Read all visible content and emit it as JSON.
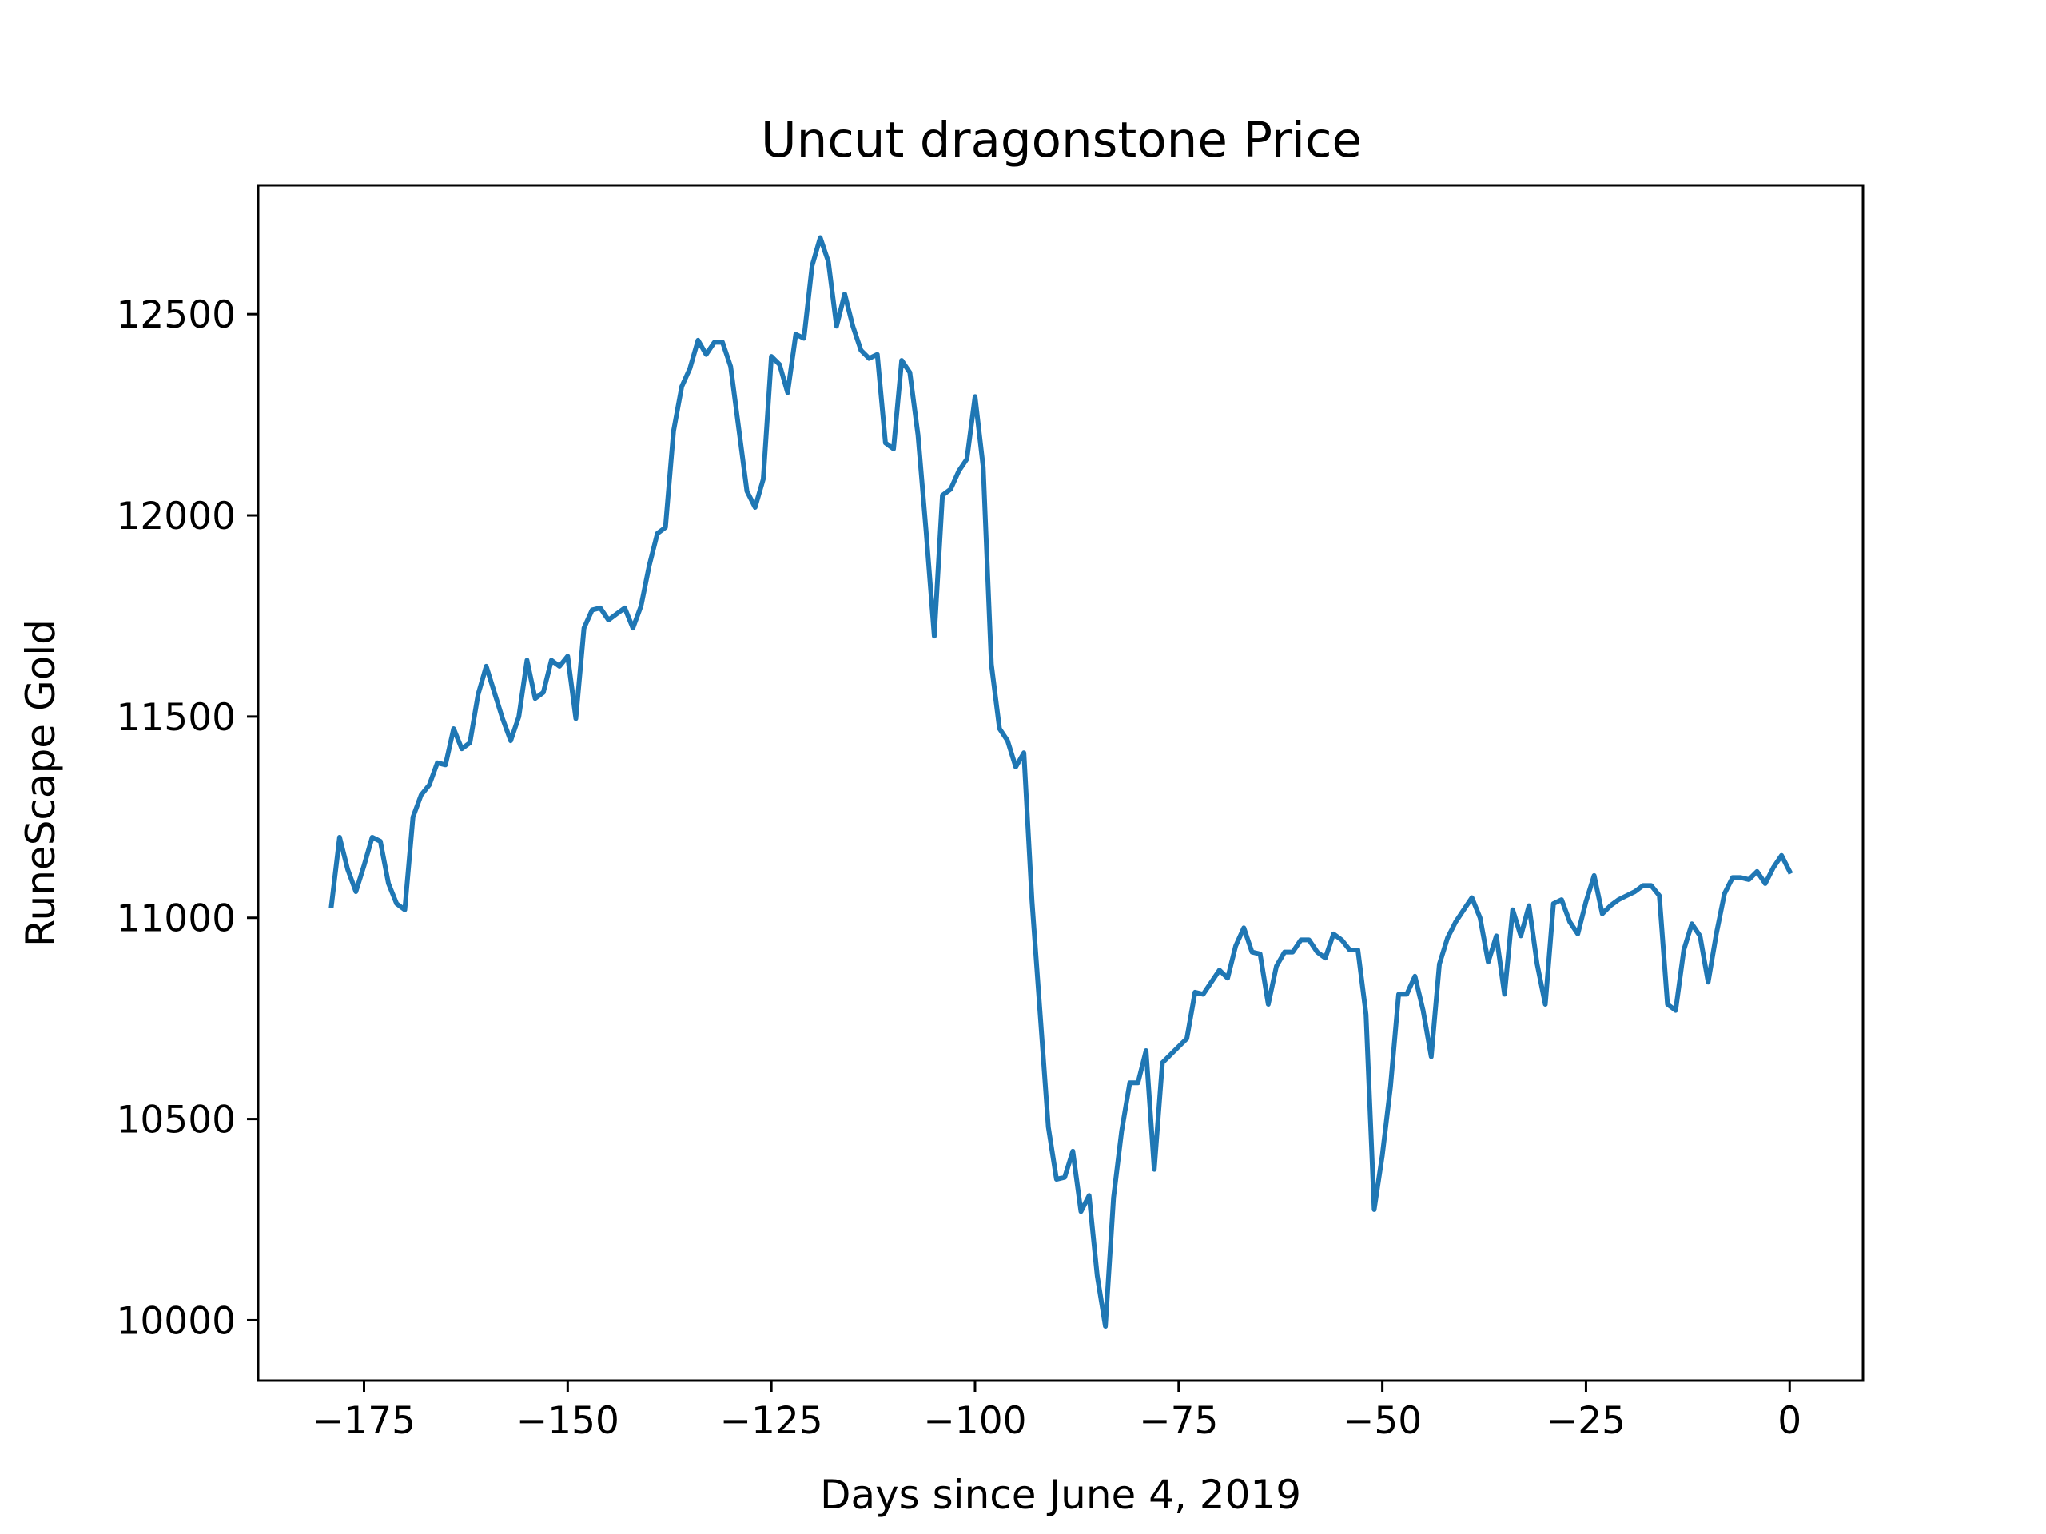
{
  "chart_data": {
    "type": "line",
    "title": "Uncut dragonstone Price",
    "xlabel": "Days since June 4, 2019",
    "ylabel": "RuneScape Gold",
    "xlim": [
      -188,
      9
    ],
    "ylim": [
      9850,
      12820
    ],
    "xticks": [
      -175,
      -150,
      -125,
      -100,
      -75,
      -50,
      -25,
      0
    ],
    "yticks": [
      10000,
      10500,
      11000,
      11500,
      12000,
      12500
    ],
    "grid": false,
    "line_color": "#1f77b4",
    "series": [
      {
        "x": [
          -179,
          -178,
          -177,
          -176,
          -175,
          -174,
          -173,
          -172,
          -171,
          -170,
          -169,
          -168,
          -167,
          -166,
          -165,
          -164,
          -163,
          -162,
          -161,
          -160,
          -159,
          -158,
          -157,
          -156,
          -155,
          -154,
          -153,
          -152,
          -151,
          -150,
          -149,
          -148,
          -147,
          -146,
          -145,
          -144,
          -143,
          -142,
          -141,
          -140,
          -139,
          -138,
          -137,
          -136,
          -135,
          -134,
          -133,
          -132,
          -131,
          -130,
          -129,
          -128,
          -127,
          -126,
          -125,
          -124,
          -123,
          -122,
          -121,
          -120,
          -119,
          -118,
          -117,
          -116,
          -115,
          -114,
          -113,
          -112,
          -111,
          -110,
          -109,
          -108,
          -107,
          -106,
          -105,
          -104,
          -103,
          -102,
          -101,
          -100,
          -99,
          -98,
          -97,
          -96,
          -95,
          -94,
          -93,
          -92,
          -91,
          -90,
          -89,
          -88,
          -87,
          -86,
          -85,
          -84,
          -83,
          -82,
          -81,
          -80,
          -79,
          -78,
          -77,
          -76,
          -75,
          -74,
          -73,
          -72,
          -71,
          -70,
          -69,
          -68,
          -67,
          -66,
          -65,
          -64,
          -63,
          -62,
          -61,
          -60,
          -59,
          -58,
          -57,
          -56,
          -55,
          -54,
          -53,
          -52,
          -51,
          -50,
          -49,
          -48,
          -47,
          -46,
          -45,
          -44,
          -43,
          -42,
          -41,
          -40,
          -39,
          -38,
          -37,
          -36,
          -35,
          -34,
          -33,
          -32,
          -31,
          -30,
          -29,
          -28,
          -27,
          -26,
          -25,
          -24,
          -23,
          -22,
          -21,
          -20,
          -19,
          -18,
          -17,
          -16,
          -15,
          -14,
          -13,
          -12,
          -11,
          -10,
          -9,
          -8,
          -7,
          -6,
          -5,
          -4,
          -3,
          -2,
          -1,
          0
        ],
        "y": [
          11030,
          11200,
          11120,
          11065,
          11130,
          11200,
          11190,
          11085,
          11035,
          11020,
          11250,
          11305,
          11330,
          11385,
          11380,
          11470,
          11420,
          11435,
          11555,
          11625,
          11560,
          11495,
          11440,
          11500,
          11640,
          11545,
          11560,
          11640,
          11625,
          11650,
          11495,
          11720,
          11765,
          11770,
          11740,
          11755,
          11770,
          11720,
          11775,
          11875,
          11955,
          11970,
          12210,
          12320,
          12365,
          12435,
          12400,
          12430,
          12430,
          12370,
          12215,
          12060,
          12020,
          12090,
          12395,
          12375,
          12305,
          12450,
          12440,
          12620,
          12690,
          12630,
          12470,
          12550,
          12470,
          12410,
          12390,
          12400,
          12180,
          12165,
          12385,
          12355,
          12200,
          11960,
          11700,
          12050,
          12065,
          12110,
          12140,
          12295,
          12120,
          11630,
          11470,
          11440,
          11375,
          11410,
          11040,
          10760,
          10480,
          10350,
          10355,
          10420,
          10270,
          10310,
          10110,
          9985,
          10305,
          10470,
          10590,
          10590,
          10670,
          10375,
          10640,
          10660,
          10680,
          10700,
          10815,
          10810,
          10840,
          10870,
          10850,
          10930,
          10975,
          10915,
          10910,
          10785,
          10880,
          10915,
          10915,
          10945,
          10945,
          10915,
          10900,
          10960,
          10945,
          10920,
          10920,
          10760,
          10275,
          10410,
          10580,
          10810,
          10810,
          10855,
          10770,
          10655,
          10885,
          10950,
          10990,
          11020,
          11050,
          11000,
          10890,
          10955,
          10810,
          11020,
          10955,
          11030,
          10885,
          10785,
          11035,
          11045,
          10990,
          10960,
          11040,
          11105,
          11010,
          11030,
          11045,
          11055,
          11065,
          11080,
          11080,
          11055,
          10785,
          10770,
          10920,
          10985,
          10955,
          10840,
          10960,
          11060,
          11100,
          11100,
          11095,
          11115,
          11085,
          11125,
          11155,
          11115
        ]
      }
    ]
  }
}
